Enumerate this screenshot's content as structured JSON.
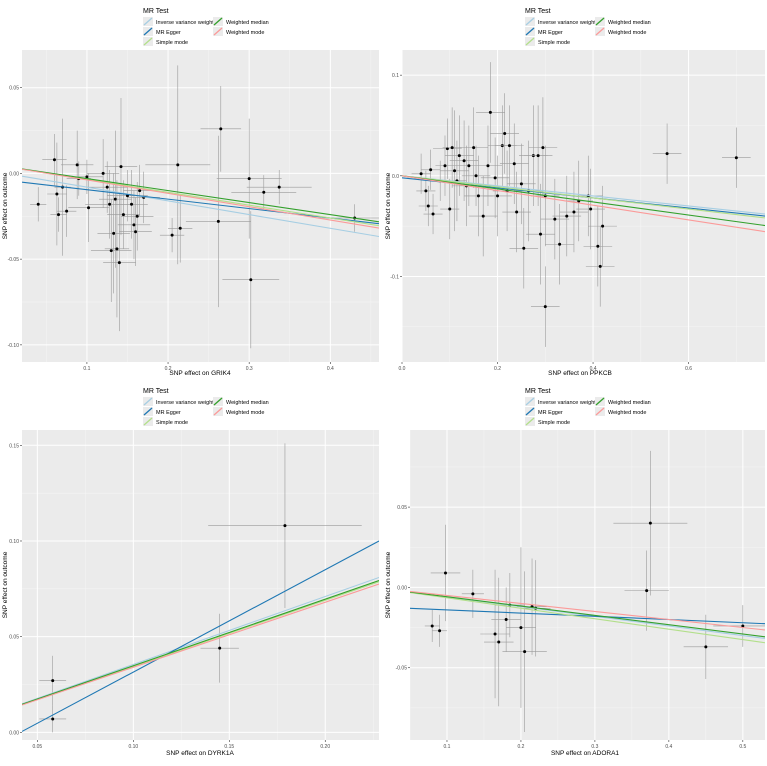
{
  "legend": {
    "title": "MR Test",
    "entries": [
      {
        "key": "ivw",
        "label": "Inverse variance weighted",
        "color": "#a6cee3"
      },
      {
        "key": "egger",
        "label": "MR Egger",
        "color": "#1f78b4"
      },
      {
        "key": "simple",
        "label": "Simple mode",
        "color": "#b2df8a"
      },
      {
        "key": "wmedian",
        "label": "Weighted median",
        "color": "#33a02c"
      },
      {
        "key": "wmode",
        "label": "Weighted mode",
        "color": "#fb9a99"
      }
    ]
  },
  "chart_data": [
    {
      "type": "scatter",
      "xlabel": "SNP effect on GRIK4",
      "ylabel": "SNP effect on outcome",
      "xlim": [
        0.02,
        0.46
      ],
      "ylim": [
        -0.11,
        0.072
      ],
      "xticks": [
        0.1,
        0.2,
        0.3,
        0.4
      ],
      "yticks": [
        -0.1,
        -0.05,
        0.0,
        0.05
      ],
      "xtick_labels": [
        "0.1",
        "0.2",
        "0.3",
        "0.4"
      ],
      "ytick_labels": [
        "-0.10",
        "-0.05",
        "0.00",
        "0.05"
      ],
      "points": [
        {
          "x": 0.04,
          "y": -0.018,
          "xe": 0.01,
          "ye": 0.01
        },
        {
          "x": 0.06,
          "y": 0.008,
          "xe": 0.015,
          "ye": 0.015
        },
        {
          "x": 0.063,
          "y": -0.012,
          "xe": 0.012,
          "ye": 0.03
        },
        {
          "x": 0.065,
          "y": -0.024,
          "xe": 0.01,
          "ye": 0.01
        },
        {
          "x": 0.07,
          "y": -0.008,
          "xe": 0.01,
          "ye": 0.04
        },
        {
          "x": 0.075,
          "y": -0.022,
          "xe": 0.012,
          "ye": 0.015
        },
        {
          "x": 0.088,
          "y": 0.005,
          "xe": 0.02,
          "ye": 0.02
        },
        {
          "x": 0.09,
          "y": -0.003,
          "xe": 0.015,
          "ye": 0.01
        },
        {
          "x": 0.1,
          "y": -0.002,
          "xe": 0.02,
          "ye": 0.01
        },
        {
          "x": 0.102,
          "y": -0.02,
          "xe": 0.025,
          "ye": 0.02
        },
        {
          "x": 0.12,
          "y": 0.0,
          "xe": 0.02,
          "ye": 0.02
        },
        {
          "x": 0.125,
          "y": -0.008,
          "xe": 0.025,
          "ye": 0.015
        },
        {
          "x": 0.128,
          "y": -0.018,
          "xe": 0.03,
          "ye": 0.02
        },
        {
          "x": 0.13,
          "y": -0.045,
          "xe": 0.025,
          "ye": 0.03
        },
        {
          "x": 0.133,
          "y": -0.035,
          "xe": 0.02,
          "ye": 0.035
        },
        {
          "x": 0.135,
          "y": -0.015,
          "xe": 0.02,
          "ye": 0.04
        },
        {
          "x": 0.137,
          "y": -0.044,
          "xe": 0.015,
          "ye": 0.04
        },
        {
          "x": 0.14,
          "y": -0.052,
          "xe": 0.02,
          "ye": 0.04
        },
        {
          "x": 0.142,
          "y": 0.004,
          "xe": 0.02,
          "ye": 0.04
        },
        {
          "x": 0.145,
          "y": -0.024,
          "xe": 0.02,
          "ye": 0.02
        },
        {
          "x": 0.15,
          "y": -0.013,
          "xe": 0.025,
          "ye": 0.015
        },
        {
          "x": 0.155,
          "y": -0.018,
          "xe": 0.02,
          "ye": 0.02
        },
        {
          "x": 0.158,
          "y": -0.03,
          "xe": 0.02,
          "ye": 0.02
        },
        {
          "x": 0.16,
          "y": -0.034,
          "xe": 0.02,
          "ye": 0.02
        },
        {
          "x": 0.162,
          "y": -0.025,
          "xe": 0.02,
          "ye": 0.02
        },
        {
          "x": 0.165,
          "y": -0.01,
          "xe": 0.02,
          "ye": 0.015
        },
        {
          "x": 0.17,
          "y": -0.014,
          "xe": 0.02,
          "ye": 0.015
        },
        {
          "x": 0.205,
          "y": -0.036,
          "xe": 0.015,
          "ye": 0.01
        },
        {
          "x": 0.212,
          "y": 0.005,
          "xe": 0.04,
          "ye": 0.058
        },
        {
          "x": 0.215,
          "y": -0.032,
          "xe": 0.015,
          "ye": 0.02
        },
        {
          "x": 0.265,
          "y": 0.026,
          "xe": 0.025,
          "ye": 0.025
        },
        {
          "x": 0.262,
          "y": -0.028,
          "xe": 0.04,
          "ye": 0.05
        },
        {
          "x": 0.3,
          "y": -0.003,
          "xe": 0.04,
          "ye": 0.035
        },
        {
          "x": 0.302,
          "y": -0.062,
          "xe": 0.035,
          "ye": 0.04
        },
        {
          "x": 0.318,
          "y": -0.011,
          "xe": 0.04,
          "ye": 0.01
        },
        {
          "x": 0.337,
          "y": -0.008,
          "xe": 0.04,
          "ye": 0.01
        },
        {
          "x": 0.43,
          "y": -0.026,
          "xe": 0.04,
          "ye": 0.008
        }
      ],
      "lines": [
        {
          "key": "ivw",
          "a": 0.0,
          "b": -0.08
        },
        {
          "key": "egger",
          "a": -0.004,
          "b": -0.055
        },
        {
          "key": "simple",
          "a": 0.004,
          "b": -0.075
        },
        {
          "key": "wmedian",
          "a": 0.004,
          "b": -0.07
        },
        {
          "key": "wmode",
          "a": 0.004,
          "b": -0.078
        }
      ]
    },
    {
      "type": "scatter",
      "xlabel": "SNP effect on PPKCB",
      "ylabel": "SNP effect on outcome",
      "xlim": [
        0.0,
        0.76
      ],
      "ylim": [
        -0.185,
        0.125
      ],
      "xticks": [
        0.0,
        0.2,
        0.4,
        0.6
      ],
      "yticks": [
        -0.1,
        0.0,
        0.1
      ],
      "xtick_labels": [
        "0.0",
        "0.2",
        "0.4",
        "0.6"
      ],
      "ytick_labels": [
        "-0.1",
        "0.0",
        "0.1"
      ],
      "points": [
        {
          "x": 0.04,
          "y": 0.002,
          "xe": 0.02,
          "ye": 0.02
        },
        {
          "x": 0.05,
          "y": -0.015,
          "xe": 0.02,
          "ye": 0.02
        },
        {
          "x": 0.055,
          "y": -0.03,
          "xe": 0.02,
          "ye": 0.02
        },
        {
          "x": 0.06,
          "y": 0.006,
          "xe": 0.02,
          "ye": 0.02
        },
        {
          "x": 0.065,
          "y": -0.038,
          "xe": 0.02,
          "ye": 0.02
        },
        {
          "x": 0.08,
          "y": -0.005,
          "xe": 0.02,
          "ye": 0.02
        },
        {
          "x": 0.09,
          "y": 0.01,
          "xe": 0.02,
          "ye": 0.03
        },
        {
          "x": 0.095,
          "y": 0.027,
          "xe": 0.03,
          "ye": 0.03
        },
        {
          "x": 0.1,
          "y": -0.033,
          "xe": 0.02,
          "ye": 0.03
        },
        {
          "x": 0.105,
          "y": 0.028,
          "xe": 0.02,
          "ye": 0.04
        },
        {
          "x": 0.11,
          "y": 0.005,
          "xe": 0.03,
          "ye": 0.06
        },
        {
          "x": 0.115,
          "y": -0.005,
          "xe": 0.02,
          "ye": 0.04
        },
        {
          "x": 0.12,
          "y": 0.02,
          "xe": 0.03,
          "ye": 0.04
        },
        {
          "x": 0.13,
          "y": 0.015,
          "xe": 0.03,
          "ye": 0.04
        },
        {
          "x": 0.135,
          "y": -0.01,
          "xe": 0.03,
          "ye": 0.04
        },
        {
          "x": 0.14,
          "y": 0.01,
          "xe": 0.03,
          "ye": 0.04
        },
        {
          "x": 0.15,
          "y": 0.028,
          "xe": 0.03,
          "ye": 0.04
        },
        {
          "x": 0.155,
          "y": 0.0,
          "xe": 0.03,
          "ye": 0.03
        },
        {
          "x": 0.16,
          "y": -0.02,
          "xe": 0.03,
          "ye": 0.04
        },
        {
          "x": 0.17,
          "y": -0.04,
          "xe": 0.03,
          "ye": 0.04
        },
        {
          "x": 0.18,
          "y": 0.01,
          "xe": 0.03,
          "ye": 0.04
        },
        {
          "x": 0.185,
          "y": 0.063,
          "xe": 0.03,
          "ye": 0.05
        },
        {
          "x": 0.195,
          "y": -0.002,
          "xe": 0.03,
          "ye": 0.04
        },
        {
          "x": 0.2,
          "y": -0.02,
          "xe": 0.03,
          "ye": 0.04
        },
        {
          "x": 0.21,
          "y": 0.03,
          "xe": 0.03,
          "ye": 0.04
        },
        {
          "x": 0.215,
          "y": 0.042,
          "xe": 0.03,
          "ye": 0.04
        },
        {
          "x": 0.22,
          "y": -0.015,
          "xe": 0.03,
          "ye": 0.04
        },
        {
          "x": 0.225,
          "y": 0.03,
          "xe": 0.03,
          "ye": 0.04
        },
        {
          "x": 0.235,
          "y": 0.012,
          "xe": 0.03,
          "ye": 0.04
        },
        {
          "x": 0.24,
          "y": -0.036,
          "xe": 0.03,
          "ye": 0.04
        },
        {
          "x": 0.25,
          "y": -0.008,
          "xe": 0.03,
          "ye": 0.04
        },
        {
          "x": 0.255,
          "y": -0.072,
          "xe": 0.03,
          "ye": 0.04
        },
        {
          "x": 0.265,
          "y": -0.015,
          "xe": 0.03,
          "ye": 0.05
        },
        {
          "x": 0.275,
          "y": 0.02,
          "xe": 0.03,
          "ye": 0.05
        },
        {
          "x": 0.285,
          "y": 0.02,
          "xe": 0.03,
          "ye": 0.05
        },
        {
          "x": 0.29,
          "y": -0.058,
          "xe": 0.03,
          "ye": 0.05
        },
        {
          "x": 0.295,
          "y": 0.028,
          "xe": 0.03,
          "ye": 0.05
        },
        {
          "x": 0.3,
          "y": -0.02,
          "xe": 0.03,
          "ye": 0.05
        },
        {
          "x": 0.3,
          "y": -0.13,
          "xe": 0.03,
          "ye": 0.04
        },
        {
          "x": 0.32,
          "y": -0.043,
          "xe": 0.03,
          "ye": 0.04
        },
        {
          "x": 0.33,
          "y": -0.068,
          "xe": 0.03,
          "ye": 0.04
        },
        {
          "x": 0.345,
          "y": -0.04,
          "xe": 0.03,
          "ye": 0.04
        },
        {
          "x": 0.36,
          "y": -0.036,
          "xe": 0.03,
          "ye": 0.04
        },
        {
          "x": 0.37,
          "y": -0.025,
          "xe": 0.03,
          "ye": 0.04
        },
        {
          "x": 0.39,
          "y": -0.02,
          "xe": 0.03,
          "ye": 0.04
        },
        {
          "x": 0.395,
          "y": -0.033,
          "xe": 0.03,
          "ye": 0.04
        },
        {
          "x": 0.41,
          "y": -0.07,
          "xe": 0.03,
          "ye": 0.04
        },
        {
          "x": 0.415,
          "y": -0.09,
          "xe": 0.03,
          "ye": 0.04
        },
        {
          "x": 0.42,
          "y": -0.05,
          "xe": 0.03,
          "ye": 0.04
        },
        {
          "x": 0.555,
          "y": 0.022,
          "xe": 0.03,
          "ye": 0.03
        },
        {
          "x": 0.7,
          "y": 0.018,
          "xe": 0.03,
          "ye": 0.03
        }
      ],
      "lines": [
        {
          "key": "ivw",
          "a": 0.0,
          "b": -0.05
        },
        {
          "key": "egger",
          "a": -0.002,
          "b": -0.05
        },
        {
          "key": "simple",
          "a": 0.0,
          "b": -0.055
        },
        {
          "key": "wmedian",
          "a": 0.0,
          "b": -0.065
        },
        {
          "key": "wmode",
          "a": 0.0,
          "b": -0.073
        }
      ]
    },
    {
      "type": "scatter",
      "xlabel": "SNP effect on DYRK1A",
      "ylabel": "SNP effect on outcome",
      "xlim": [
        0.042,
        0.228
      ],
      "ylim": [
        -0.004,
        0.158
      ],
      "xticks": [
        0.05,
        0.1,
        0.15,
        0.2
      ],
      "yticks": [
        0.0,
        0.05,
        0.1,
        0.15
      ],
      "xtick_labels": [
        "0.05",
        "0.10",
        "0.15",
        "0.20"
      ],
      "ytick_labels": [
        "0.00",
        "0.05",
        "0.10",
        "0.15"
      ],
      "points": [
        {
          "x": 0.058,
          "y": 0.007,
          "xe": 0.007,
          "ye": 0.007
        },
        {
          "x": 0.058,
          "y": 0.027,
          "xe": 0.007,
          "ye": 0.013
        },
        {
          "x": 0.145,
          "y": 0.044,
          "xe": 0.01,
          "ye": 0.018
        },
        {
          "x": 0.179,
          "y": 0.108,
          "xe": 0.04,
          "ye": 0.043
        }
      ],
      "lines": [
        {
          "key": "ivw",
          "a": 0.0,
          "b": 0.355
        },
        {
          "key": "egger",
          "a": -0.022,
          "b": 0.535
        },
        {
          "key": "simple",
          "a": 0.0,
          "b": 0.345
        },
        {
          "key": "wmedian",
          "a": 0.0,
          "b": 0.348
        },
        {
          "key": "wmode",
          "a": 0.0,
          "b": 0.34
        }
      ]
    },
    {
      "type": "scatter",
      "xlabel": "SNP effect on ADORA1",
      "ylabel": "SNP effect on outcome",
      "xlim": [
        0.05,
        0.53
      ],
      "ylim": [
        -0.095,
        0.098
      ],
      "xticks": [
        0.1,
        0.2,
        0.3,
        0.4,
        0.5
      ],
      "yticks": [
        -0.05,
        0.0,
        0.05
      ],
      "xtick_labels": [
        "0.1",
        "0.2",
        "0.3",
        "0.4",
        "0.5"
      ],
      "ytick_labels": [
        "-0.05",
        "0.00",
        "0.05"
      ],
      "points": [
        {
          "x": 0.08,
          "y": -0.024,
          "xe": 0.01,
          "ye": 0.01
        },
        {
          "x": 0.09,
          "y": -0.027,
          "xe": 0.01,
          "ye": 0.01
        },
        {
          "x": 0.098,
          "y": 0.009,
          "xe": 0.02,
          "ye": 0.03
        },
        {
          "x": 0.135,
          "y": -0.004,
          "xe": 0.015,
          "ye": 0.015
        },
        {
          "x": 0.165,
          "y": -0.029,
          "xe": 0.02,
          "ye": 0.04
        },
        {
          "x": 0.17,
          "y": -0.034,
          "xe": 0.02,
          "ye": 0.04
        },
        {
          "x": 0.18,
          "y": -0.02,
          "xe": 0.02,
          "ye": 0.02
        },
        {
          "x": 0.185,
          "y": -0.011,
          "xe": 0.02,
          "ye": 0.02
        },
        {
          "x": 0.2,
          "y": -0.025,
          "xe": 0.02,
          "ye": 0.05
        },
        {
          "x": 0.205,
          "y": -0.04,
          "xe": 0.03,
          "ye": 0.05
        },
        {
          "x": 0.215,
          "y": -0.012,
          "xe": 0.02,
          "ye": 0.03
        },
        {
          "x": 0.22,
          "y": -0.013,
          "xe": 0.02,
          "ye": 0.03
        },
        {
          "x": 0.37,
          "y": -0.002,
          "xe": 0.03,
          "ye": 0.025
        },
        {
          "x": 0.375,
          "y": 0.04,
          "xe": 0.05,
          "ye": 0.045
        },
        {
          "x": 0.45,
          "y": -0.037,
          "xe": 0.03,
          "ye": 0.02
        },
        {
          "x": 0.5,
          "y": -0.024,
          "xe": 0.04,
          "ye": 0.013
        }
      ],
      "lines": [
        {
          "key": "ivw",
          "a": 0.0,
          "b": -0.06
        },
        {
          "key": "egger",
          "a": -0.012,
          "b": -0.02
        },
        {
          "key": "simple",
          "a": 0.0,
          "b": -0.065
        },
        {
          "key": "wmedian",
          "a": 0.0,
          "b": -0.058
        },
        {
          "key": "wmode",
          "a": 0.0,
          "b": -0.05
        }
      ]
    }
  ]
}
